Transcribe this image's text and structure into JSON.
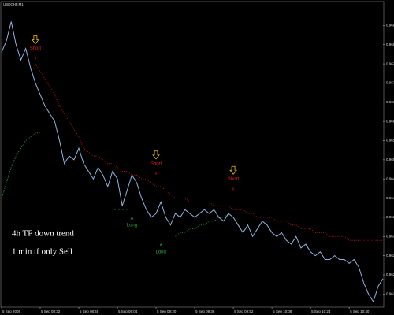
{
  "chart_data": {
    "type": "line",
    "title": "USDCHF,M1",
    "background": "#000000",
    "ylim": [
      0.9612,
      0.969
    ],
    "yticks": [
      0.9615,
      0.962,
      0.9625,
      0.963,
      0.9635,
      0.964,
      0.9645,
      0.965,
      0.9655,
      0.966,
      0.9665,
      0.967,
      0.9675,
      0.968,
      0.9685
    ],
    "xlim": [
      0,
      79
    ],
    "xticks": [
      {
        "value": 0,
        "label": "5 Sep 2008"
      },
      {
        "value": 8,
        "label": "5 Sep 08:32"
      },
      {
        "value": 16,
        "label": "5 Sep 08:48"
      },
      {
        "value": 24,
        "label": "5 Sep 09:04"
      },
      {
        "value": 32,
        "label": "5 Sep 09:20"
      },
      {
        "value": 40,
        "label": "5 Sep 09:36"
      },
      {
        "value": 48,
        "label": "5 Sep 09:52"
      },
      {
        "value": 56,
        "label": "5 Sep 10:08"
      },
      {
        "value": 64,
        "label": "5 Sep 10:24"
      },
      {
        "value": 72,
        "label": "5 Sep 10:40"
      }
    ],
    "grid": false,
    "series": [
      {
        "color": "#8fb4e0",
        "style": "solid",
        "values": [
          0.9678,
          0.9681,
          0.9686,
          0.968,
          0.9676,
          0.9679,
          0.9674,
          0.967,
          0.9667,
          0.9664,
          0.9662,
          0.966,
          0.9655,
          0.9649,
          0.9651,
          0.965,
          0.9653,
          0.9649,
          0.9647,
          0.9645,
          0.9648,
          0.9646,
          0.9643,
          0.9647,
          0.9645,
          0.9638,
          0.9642,
          0.9646,
          0.9644,
          0.964,
          0.9637,
          0.9635,
          0.9636,
          0.9639,
          0.9635,
          0.9633,
          0.9636,
          0.9635,
          0.9637,
          0.9636,
          0.9635,
          0.9636,
          0.9637,
          0.9636,
          0.9637,
          0.9635,
          0.9634,
          0.9636,
          0.9635,
          0.9633,
          0.9631,
          0.9633,
          0.963,
          0.9632,
          0.9634,
          0.9633,
          0.9631,
          0.963,
          0.9631,
          0.9629,
          0.9628,
          0.963,
          0.9627,
          0.9628,
          0.9626,
          0.9625,
          0.9626,
          0.9624,
          0.9624,
          0.9625,
          0.9624,
          0.9624,
          0.9623,
          0.9624,
          0.9622,
          0.9618,
          0.9615,
          0.9613,
          0.9617,
          0.9619
        ]
      },
      {
        "color": "#c0141c",
        "style": "dotted",
        "values": [
          null,
          null,
          null,
          null,
          null,
          null,
          null,
          0.9675,
          0.9673,
          0.9671,
          0.9669,
          0.9667,
          0.9664,
          0.9662,
          0.966,
          0.9658,
          0.9656,
          0.9653,
          0.9652,
          0.9651,
          0.9651,
          0.965,
          0.9649,
          0.9649,
          0.9648,
          0.9647,
          0.9647,
          0.9646,
          0.9646,
          0.9645,
          0.9645,
          0.9644,
          0.9643,
          0.9643,
          0.9642,
          0.9641,
          0.964,
          0.964,
          0.964,
          0.9639,
          0.9639,
          0.9639,
          0.9639,
          0.9639,
          0.9638,
          0.9638,
          0.9638,
          0.9638,
          0.9637,
          0.9637,
          0.9637,
          0.9636,
          0.9636,
          0.9635,
          0.9635,
          0.9635,
          0.9635,
          0.9634,
          0.9634,
          0.9634,
          0.9633,
          0.9633,
          0.9632,
          0.9632,
          0.9632,
          0.9631,
          0.9631,
          0.9631,
          0.963,
          0.963,
          0.963,
          0.963,
          0.9629,
          0.9629,
          0.9629,
          0.9629,
          0.9629,
          0.9629,
          0.9629,
          0.9629
        ]
      },
      {
        "color": "#2ea043",
        "style": "dotted",
        "values": [
          0.964,
          0.9644,
          0.9648,
          0.9651,
          0.9653,
          0.9655,
          0.9656,
          0.9657,
          0.9657,
          null,
          null,
          null,
          null,
          null,
          null,
          null,
          null,
          null,
          null,
          null,
          null,
          null,
          null,
          0.9637,
          0.9637,
          0.9637,
          0.9637,
          null,
          null,
          null,
          null,
          null,
          null,
          null,
          null,
          null,
          0.963,
          0.9631,
          0.9631,
          0.9632,
          0.9632,
          0.9633,
          0.9633,
          0.9634,
          0.9634,
          0.9635,
          0.9635,
          0.9636,
          null,
          null,
          null,
          null,
          null,
          null,
          null,
          null,
          null,
          null,
          null,
          null,
          null,
          null,
          null,
          null,
          null,
          null,
          null,
          null,
          null,
          null,
          null,
          null,
          null,
          null,
          null,
          null,
          null,
          null,
          null,
          null
        ]
      }
    ],
    "annotations": [
      {
        "text": "Short",
        "x": 7,
        "y": 0.9679,
        "color": "#e02020",
        "kind": "short"
      },
      {
        "text": "Short",
        "x": 32,
        "y": 0.9649,
        "color": "#e02020",
        "kind": "short"
      },
      {
        "text": "Short",
        "x": 48,
        "y": 0.9645,
        "color": "#e02020",
        "kind": "short"
      },
      {
        "text": "Long",
        "x": 27,
        "y": 0.9633,
        "color": "#2ea043",
        "kind": "long"
      },
      {
        "text": "Long",
        "x": 33,
        "y": 0.9626,
        "color": "#2ea043",
        "kind": "long"
      }
    ],
    "notes": [
      "4h TF down trend",
      "1 min tf only Sell"
    ]
  }
}
